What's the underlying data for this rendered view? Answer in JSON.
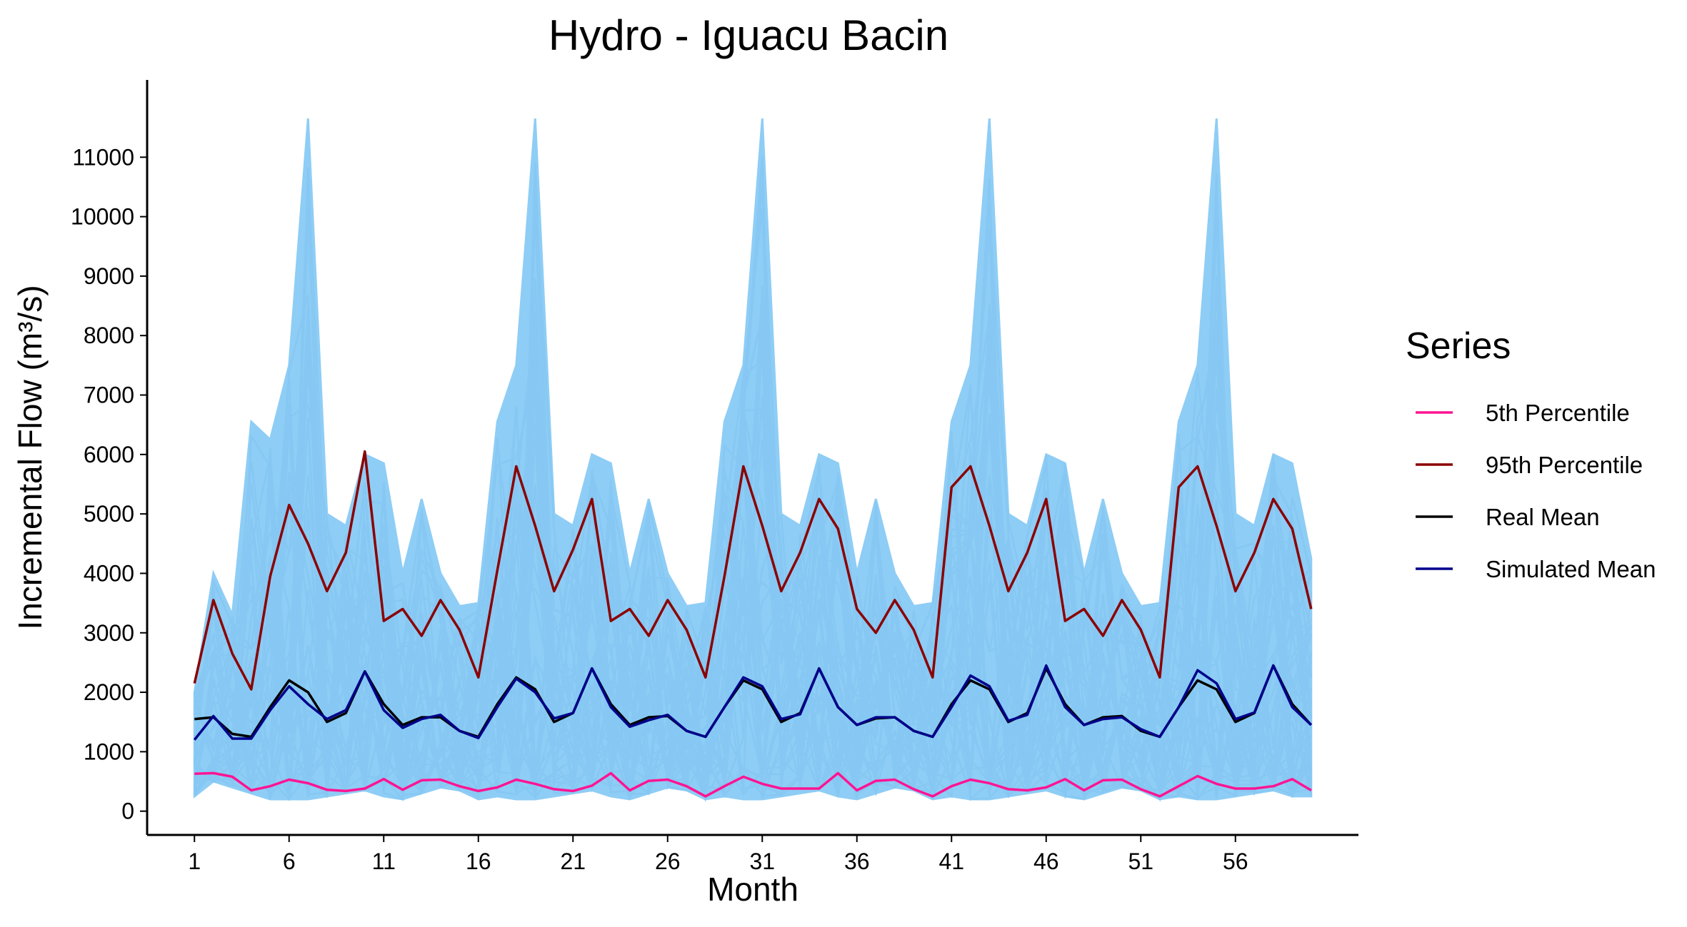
{
  "chart_data": {
    "type": "line",
    "title": "Hydro - Iguacu Bacin",
    "xlabel": "Month",
    "ylabel": "Incremental Flow (m³/s)",
    "xlim": [
      -1.5,
      62.5
    ],
    "ylim": [
      -400,
      12300
    ],
    "x_ticks": [
      1,
      6,
      11,
      16,
      21,
      26,
      31,
      36,
      41,
      46,
      51,
      56
    ],
    "y_ticks": [
      0,
      1000,
      2000,
      3000,
      4000,
      5000,
      6000,
      7000,
      8000,
      9000,
      10000,
      11000
    ],
    "x_tick_labels": [
      "1",
      "6",
      "11",
      "16",
      "21",
      "26",
      "31",
      "36",
      "41",
      "46",
      "51",
      "56"
    ],
    "y_tick_labels": [
      "0",
      "1000",
      "2000",
      "3000",
      "4000",
      "5000",
      "6000",
      "7000",
      "8000",
      "9000",
      "10000",
      "11000"
    ],
    "grid": false,
    "legend": {
      "title": "Series",
      "position": "right"
    },
    "scenario_band": {
      "color": "#8ecdf5",
      "upper": [
        2000,
        4000,
        3300,
        6550,
        6250,
        7500,
        11650,
        5000,
        4800,
        6000,
        5850,
        4000,
        5250,
        4000,
        3450,
        3500,
        6550,
        7500,
        11650,
        5000,
        4800,
        6000,
        5850,
        4000,
        5250,
        4000,
        3450,
        3500,
        6550,
        7500,
        11650,
        5000,
        4800,
        6000,
        5850,
        4000,
        5250,
        4000,
        3450,
        3500,
        6550,
        7500,
        11650,
        5000,
        4800,
        6000,
        5850,
        4000,
        5250,
        4000,
        3450,
        3500,
        6550,
        7500,
        11650,
        5000,
        4800,
        6000,
        5850,
        4250
      ],
      "lower": [
        250,
        500,
        400,
        300,
        200,
        200,
        200,
        250,
        300,
        350,
        250,
        200,
        300,
        400,
        350,
        200,
        250,
        200,
        200,
        250,
        300,
        350,
        250,
        200,
        300,
        400,
        350,
        200,
        250,
        200,
        200,
        250,
        300,
        350,
        250,
        200,
        300,
        400,
        350,
        200,
        250,
        200,
        200,
        250,
        300,
        350,
        250,
        200,
        300,
        400,
        350,
        200,
        250,
        200,
        200,
        250,
        300,
        350,
        250,
        250
      ]
    },
    "series": [
      {
        "name": "5th Percentile",
        "color": "#ff1493",
        "values": [
          630,
          640,
          580,
          350,
          420,
          530,
          470,
          360,
          340,
          380,
          540,
          360,
          520,
          530,
          420,
          340,
          400,
          530,
          460,
          370,
          340,
          430,
          640,
          350,
          510,
          530,
          420,
          250,
          420,
          580,
          460,
          380,
          380,
          380,
          640,
          350,
          510,
          530,
          370,
          250,
          420,
          530,
          470,
          370,
          350,
          400,
          540,
          350,
          520,
          530,
          370,
          250,
          420,
          590,
          460,
          380,
          380,
          420,
          540,
          350
        ]
      },
      {
        "name": "95th Percentile",
        "color": "#8b0000",
        "values": [
          2150,
          3550,
          2650,
          2050,
          3950,
          5150,
          4500,
          3700,
          4350,
          6050,
          3200,
          3400,
          2950,
          3550,
          3050,
          2250,
          4050,
          5800,
          4800,
          3700,
          4400,
          5250,
          3200,
          3400,
          2950,
          3550,
          3050,
          2250,
          3950,
          5800,
          4800,
          3700,
          4350,
          5250,
          4750,
          3400,
          3000,
          3550,
          3050,
          2250,
          5450,
          5800,
          4800,
          3700,
          4350,
          5250,
          3200,
          3400,
          2950,
          3550,
          3050,
          2250,
          5450,
          5800,
          4800,
          3700,
          4350,
          5250,
          4750,
          3400
        ]
      },
      {
        "name": "Real Mean",
        "color": "#000000",
        "values": [
          1550,
          1580,
          1300,
          1250,
          1750,
          2200,
          2000,
          1500,
          1650,
          2350,
          1800,
          1450,
          1580,
          1580,
          1350,
          1250,
          1800,
          2250,
          2050,
          1500,
          1650,
          2400,
          1800,
          1450,
          1580,
          1600,
          1350,
          1250,
          1750,
          2200,
          2050,
          1500,
          1650,
          2400,
          1750,
          1450,
          1560,
          1580,
          1350,
          1250,
          1800,
          2200,
          2050,
          1500,
          1650,
          2400,
          1800,
          1450,
          1580,
          1600,
          1350,
          1250,
          1750,
          2200,
          2050,
          1500,
          1650,
          2450,
          1800,
          1450
        ]
      },
      {
        "name": "Simulated Mean",
        "color": "#00008b",
        "values": [
          1200,
          1600,
          1220,
          1220,
          1700,
          2100,
          1800,
          1550,
          1700,
          2350,
          1700,
          1400,
          1550,
          1620,
          1350,
          1230,
          1750,
          2230,
          2000,
          1560,
          1650,
          2400,
          1750,
          1420,
          1530,
          1620,
          1350,
          1250,
          1750,
          2250,
          2100,
          1550,
          1630,
          2400,
          1750,
          1450,
          1580,
          1580,
          1350,
          1250,
          1750,
          2280,
          2100,
          1520,
          1620,
          2450,
          1750,
          1450,
          1550,
          1580,
          1380,
          1250,
          1750,
          2370,
          2150,
          1550,
          1660,
          2450,
          1750,
          1450
        ]
      }
    ]
  }
}
